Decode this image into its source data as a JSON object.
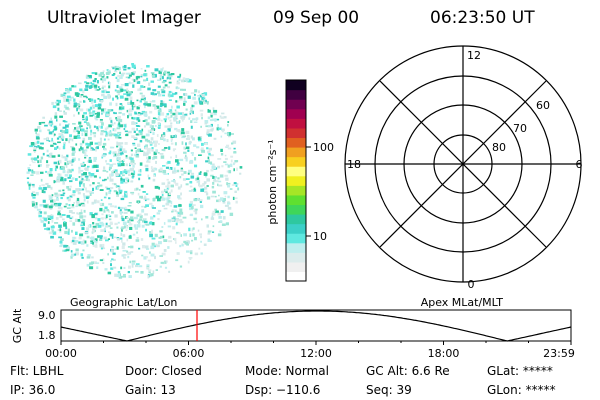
{
  "header": {
    "instrument": "Ultraviolet Imager",
    "date": "09 Sep 00",
    "time": "06:23:50 UT"
  },
  "colorbar": {
    "label": "photon cm⁻²s⁻¹",
    "ticks": [
      "100",
      "10"
    ],
    "colors": [
      "#ffffff",
      "#f0f0f0",
      "#dcecec",
      "#bfeeee",
      "#5fe8e0",
      "#3cd0c8",
      "#2ec8a0",
      "#3fd65a",
      "#5fe030",
      "#a6e626",
      "#f0f020",
      "#ffff80",
      "#f8d020",
      "#f0a020",
      "#e06020",
      "#d03030",
      "#c01040",
      "#a00050",
      "#700050",
      "#400040",
      "#100020"
    ]
  },
  "polar": {
    "mlt_labels": [
      "12",
      "18",
      "6",
      "0"
    ],
    "lat_labels": [
      "60",
      "70",
      "80"
    ]
  },
  "altplot": {
    "ylabel": "GC Alt",
    "yticks": [
      "9.0",
      "1.8"
    ],
    "left_caption": "Geographic Lat/Lon",
    "right_caption": "Apex MLat/MLT",
    "xticks": [
      "00:00",
      "06:00",
      "12:00",
      "18:00",
      "23:59"
    ],
    "current_time_hours": 6.4,
    "marker_color": "#ff0000"
  },
  "params": {
    "flt": "Flt: LBHL",
    "ip": "IP: 36.0",
    "door": "Door: Closed",
    "gain": "Gain: 13",
    "mode": "Mode: Normal",
    "dsp": "Dsp: −110.6",
    "gcalt": "GC Alt: 6.6 Re",
    "seq": "Seq: 39",
    "glat": "GLat: *****",
    "glon": "GLon: *****"
  }
}
